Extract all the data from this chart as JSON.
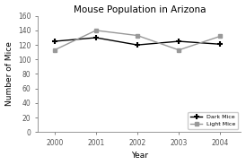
{
  "title": "Mouse Population in Arizona",
  "xlabel": "Year",
  "ylabel": "Number of Mice",
  "years": [
    2000,
    2001,
    2002,
    2003,
    2004
  ],
  "dark_mice": [
    125,
    130,
    120,
    125,
    121
  ],
  "light_mice": [
    113,
    140,
    133,
    113,
    132
  ],
  "dark_color": "#000000",
  "light_color": "#999999",
  "ylim": [
    0,
    160
  ],
  "yticks": [
    0,
    20,
    40,
    60,
    80,
    100,
    120,
    140,
    160
  ],
  "bg_color": "#ffffff",
  "plot_bg_color": "#ffffff",
  "legend_labels": [
    "Dark Mice",
    "Light Mice"
  ],
  "title_fontsize": 7.5,
  "axis_fontsize": 6.5,
  "tick_fontsize": 5.5
}
